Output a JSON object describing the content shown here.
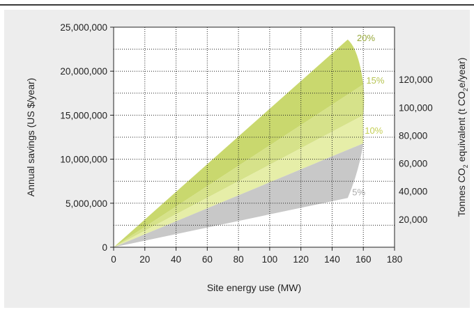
{
  "chart_data": {
    "type": "area",
    "x": [
      0,
      20,
      40,
      60,
      80,
      100,
      120,
      140,
      160,
      180
    ],
    "xlabel": "Site energy use (MW)",
    "xlim": [
      0,
      180
    ],
    "ylabel": "Annual savings (US $/year)",
    "ylim": [
      0,
      25000000
    ],
    "y_ticks": [
      0,
      5000000,
      10000000,
      15000000,
      20000000,
      25000000
    ],
    "y_tick_labels": [
      "0",
      "5,000,000",
      "10,000,000",
      "15,000,000",
      "20,000,000",
      "25,000,000"
    ],
    "x_tick_labels": [
      "0",
      "20",
      "40",
      "60",
      "80",
      "100",
      "120",
      "140",
      "160",
      "180"
    ],
    "y2label_parts": [
      "Tonnes CO",
      "2",
      " equivalent (t CO",
      "2",
      "e/year)"
    ],
    "y2_ticks": [
      20000,
      40000,
      60000,
      80000,
      100000,
      120000
    ],
    "y2_tick_labels": [
      "20,000",
      "40,000",
      "60,000",
      "80,000",
      "100,000",
      "120,000"
    ],
    "y2_map": {
      "y2_at_y0": 0,
      "y2_per_y": 0.0063
    },
    "grid": true,
    "series": [
      {
        "name": "5%",
        "color": "#c8c8c8",
        "label_color": "#aaaaaa",
        "bands": {
          "upper": [
            [
              0,
              0
            ],
            [
              160,
              11800000
            ]
          ],
          "lower": [
            [
              0,
              0
            ],
            [
              150,
              5600000
            ]
          ],
          "edge": [
            [
              150,
              5600000
            ],
            [
              152,
              5800000
            ],
            [
              154,
              7000000
            ],
            [
              157,
              9000000
            ],
            [
              160,
              11800000
            ]
          ]
        }
      },
      {
        "name": "10%",
        "color": "#e6eea8",
        "label_color": "#c5cf55",
        "bands": {
          "upper": [
            [
              0,
              0
            ],
            [
              160,
              18500000
            ]
          ],
          "lower": [
            [
              0,
              0
            ],
            [
              160,
              11800000
            ]
          ]
        }
      },
      {
        "name": "15%",
        "color": "#d6e28a",
        "label_color": "#b6c452",
        "bands": {
          "upper": [
            [
              0,
              0
            ],
            [
              160,
              18500000
            ]
          ],
          "lower": [
            [
              0,
              0
            ],
            [
              160,
              18500000
            ]
          ]
        }
      },
      {
        "name": "20%",
        "color": "#c9d86e",
        "label_color": "#97a83a",
        "bands": {
          "upper": [
            [
              0,
              0
            ],
            [
              150,
              23600000
            ]
          ],
          "lower": [
            [
              0,
              0
            ],
            [
              160,
              18500000
            ]
          ]
        }
      }
    ]
  }
}
